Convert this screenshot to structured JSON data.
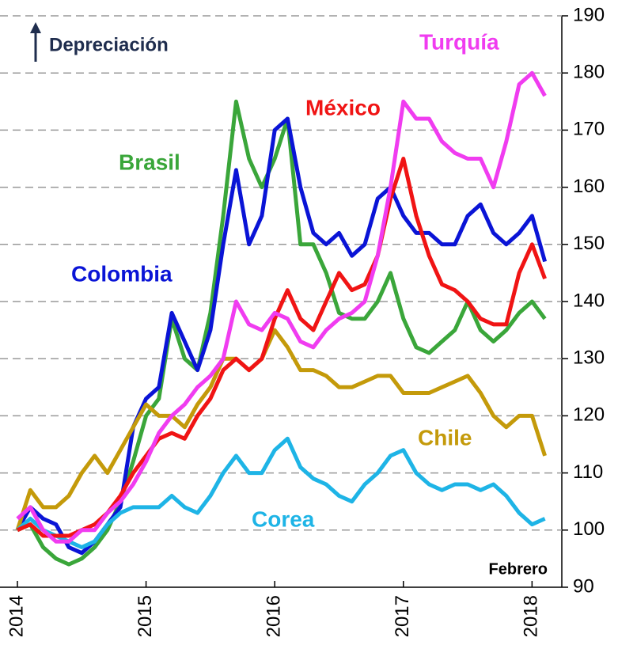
{
  "chart_data": {
    "type": "line",
    "annotations": [
      "Depreciación",
      "Febrero"
    ],
    "x": [
      2014.0,
      2014.1,
      2014.2,
      2014.3,
      2014.4,
      2014.5,
      2014.6,
      2014.7,
      2014.8,
      2014.9,
      2015.0,
      2015.1,
      2015.2,
      2015.3,
      2015.4,
      2015.5,
      2015.6,
      2015.7,
      2015.8,
      2015.9,
      2016.0,
      2016.1,
      2016.2,
      2016.3,
      2016.4,
      2016.5,
      2016.6,
      2016.7,
      2016.8,
      2016.9,
      2017.0,
      2017.1,
      2017.2,
      2017.3,
      2017.4,
      2017.5,
      2017.6,
      2017.7,
      2017.8,
      2017.9,
      2018.0,
      2018.1
    ],
    "series": [
      {
        "name": "Brasil",
        "color": "#3aa63a",
        "values": [
          100,
          101,
          97,
          95,
          94,
          95,
          97,
          100,
          105,
          112,
          120,
          123,
          137,
          130,
          128,
          138,
          155,
          175,
          165,
          160,
          165,
          172,
          150,
          150,
          145,
          138,
          137,
          137,
          140,
          145,
          137,
          132,
          131,
          133,
          135,
          140,
          135,
          133,
          135,
          138,
          140,
          137
        ]
      },
      {
        "name": "Colombia",
        "color": "#0a14d6",
        "values": [
          100,
          104,
          102,
          101,
          97,
          96,
          98,
          101,
          104,
          118,
          123,
          125,
          138,
          133,
          128,
          135,
          150,
          163,
          150,
          155,
          170,
          172,
          160,
          152,
          150,
          152,
          148,
          150,
          158,
          160,
          155,
          152,
          152,
          150,
          150,
          155,
          157,
          152,
          150,
          152,
          155,
          147
        ]
      },
      {
        "name": "Chile",
        "color": "#c49a0a",
        "values": [
          100,
          107,
          104,
          104,
          106,
          110,
          113,
          110,
          114,
          118,
          122,
          120,
          120,
          118,
          122,
          125,
          130,
          130,
          128,
          130,
          135,
          132,
          128,
          128,
          127,
          125,
          125,
          126,
          127,
          127,
          124,
          124,
          124,
          125,
          126,
          127,
          124,
          120,
          118,
          120,
          120,
          113
        ]
      },
      {
        "name": "Corea",
        "color": "#1eb4e6",
        "values": [
          100,
          102,
          100,
          99,
          98,
          97,
          98,
          101,
          103,
          104,
          104,
          104,
          106,
          104,
          103,
          106,
          110,
          113,
          110,
          110,
          114,
          116,
          111,
          109,
          108,
          106,
          105,
          108,
          110,
          113,
          114,
          110,
          108,
          107,
          108,
          108,
          107,
          108,
          106,
          103,
          101,
          102
        ]
      },
      {
        "name": "México",
        "color": "#f01414",
        "values": [
          100,
          101,
          99,
          99,
          99,
          100,
          101,
          103,
          106,
          110,
          113,
          116,
          117,
          116,
          120,
          123,
          128,
          130,
          128,
          130,
          137,
          142,
          137,
          135,
          140,
          145,
          142,
          143,
          148,
          158,
          165,
          155,
          148,
          143,
          142,
          140,
          137,
          136,
          136,
          145,
          150,
          144
        ]
      },
      {
        "name": "Turquía",
        "color": "#f03cf0",
        "values": [
          102,
          104,
          100,
          98,
          98,
          100,
          100,
          103,
          105,
          108,
          112,
          117,
          120,
          122,
          125,
          127,
          130,
          140,
          136,
          135,
          138,
          137,
          133,
          132,
          135,
          137,
          138,
          140,
          148,
          160,
          175,
          172,
          172,
          168,
          166,
          165,
          165,
          160,
          168,
          178,
          180,
          176
        ]
      }
    ],
    "xlim": [
      2014,
      2018.17
    ],
    "xticks": [
      2014,
      2015,
      2016,
      2017,
      2018
    ],
    "ylim": [
      90,
      190
    ],
    "yticks": [
      90,
      100,
      110,
      120,
      130,
      140,
      150,
      160,
      170,
      180,
      190
    ],
    "grid": true
  }
}
